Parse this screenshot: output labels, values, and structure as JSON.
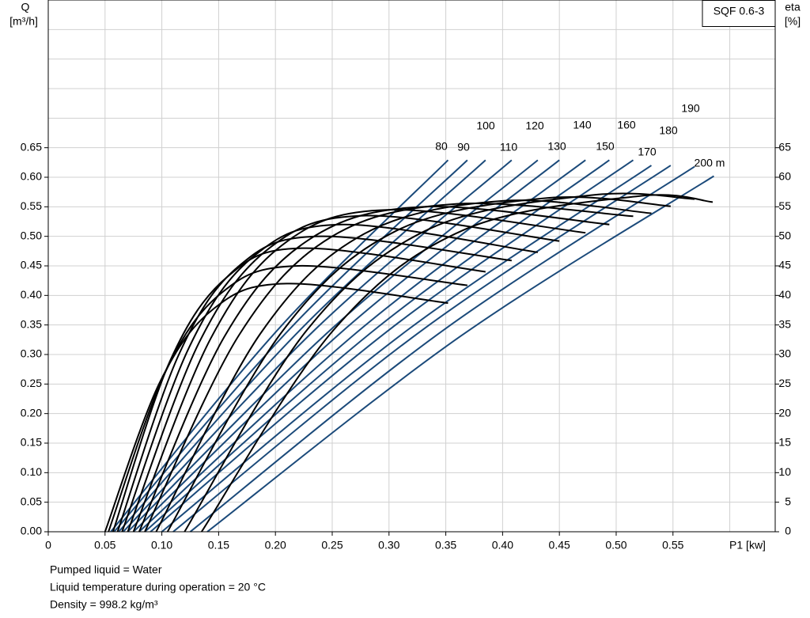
{
  "chart_data": {
    "type": "line",
    "title": "SQF 0.6-3",
    "ylabel": [
      "Q",
      "[m³/h]"
    ],
    "y2label": [
      "eta",
      "[%]"
    ],
    "xlabel": "P1 [kw]",
    "notes": [
      "Pumped liquid = Water",
      "Liquid temperature during operation = 20 °C",
      "Density = 998.2 kg/m³"
    ],
    "xlim": [
      0,
      0.64
    ],
    "ylim": [
      0,
      0.9
    ],
    "y2lim": [
      0,
      90
    ],
    "xticks": [
      0,
      0.05,
      {
        "value": 0.1,
        "label": "0.10"
      },
      0.15,
      {
        "value": 0.2,
        "label": "0.20"
      },
      0.25,
      {
        "value": 0.3,
        "label": "0.30"
      },
      0.35,
      {
        "value": 0.4,
        "label": "0.40"
      },
      0.45,
      {
        "value": 0.5,
        "label": "0.50"
      },
      0.55
    ],
    "xgrid": [
      0.6
    ],
    "yticks": [
      {
        "value": 0,
        "label": "0.00"
      },
      0.05,
      {
        "value": 0.1,
        "label": "0.10"
      },
      0.15,
      {
        "value": 0.2,
        "label": "0.20"
      },
      0.25,
      {
        "value": 0.3,
        "label": "0.30"
      },
      0.35,
      {
        "value": 0.4,
        "label": "0.40"
      },
      0.45,
      {
        "value": 0.5,
        "label": "0.50"
      },
      0.55,
      {
        "value": 0.6,
        "label": "0.60"
      },
      0.65
    ],
    "ygrid": [
      0.7,
      0.75,
      0.8,
      0.85
    ],
    "y2ticks": [
      0,
      5,
      10,
      15,
      20,
      25,
      30,
      35,
      40,
      45,
      50,
      55,
      60,
      65
    ],
    "grid": true,
    "series": [
      {
        "name": "80",
        "color": "#1b4a7a",
        "x": [
          0.055,
          0.204,
          0.352
        ],
        "values": [
          0,
          0.346,
          0.629
        ]
      },
      {
        "name": "90",
        "color": "#1b4a7a",
        "x": [
          0.058,
          0.214,
          0.369
        ],
        "values": [
          0,
          0.346,
          0.629
        ]
      },
      {
        "name": "100",
        "color": "#1b4a7a",
        "x": [
          0.062,
          0.224,
          0.385
        ],
        "values": [
          0,
          0.346,
          0.629
        ]
      },
      {
        "name": "110",
        "color": "#1b4a7a",
        "x": [
          0.066,
          0.237,
          0.408
        ],
        "values": [
          0,
          0.346,
          0.629
        ]
      },
      {
        "name": "120",
        "color": "#1b4a7a",
        "x": [
          0.07,
          0.251,
          0.431
        ],
        "values": [
          0,
          0.346,
          0.629
        ]
      },
      {
        "name": "130",
        "color": "#1b4a7a",
        "x": [
          0.075,
          0.263,
          0.45
        ],
        "values": [
          0,
          0.346,
          0.629
        ]
      },
      {
        "name": "140",
        "color": "#1b4a7a",
        "x": [
          0.08,
          0.277,
          0.473
        ],
        "values": [
          0,
          0.346,
          0.629
        ]
      },
      {
        "name": "150",
        "color": "#1b4a7a",
        "x": [
          0.085,
          0.29,
          0.494
        ],
        "values": [
          0,
          0.346,
          0.629
        ]
      },
      {
        "name": "160",
        "color": "#1b4a7a",
        "x": [
          0.09,
          0.303,
          0.515
        ],
        "values": [
          0,
          0.346,
          0.629
        ]
      },
      {
        "name": "170",
        "color": "#1b4a7a",
        "x": [
          0.1,
          0.316,
          0.531
        ],
        "values": [
          0,
          0.341,
          0.62
        ]
      },
      {
        "name": "180",
        "color": "#1b4a7a",
        "x": [
          0.11,
          0.329,
          0.548
        ],
        "values": [
          0,
          0.341,
          0.62
        ]
      },
      {
        "name": "190",
        "color": "#1b4a7a",
        "x": [
          0.125,
          0.347,
          0.569
        ],
        "values": [
          0,
          0.34,
          0.618
        ]
      },
      {
        "name": "200 m",
        "color": "#1b4a7a",
        "x": [
          0.14,
          0.363,
          0.586
        ],
        "values": [
          0,
          0.331,
          0.602
        ]
      },
      {
        "color": "#000000",
        "axis": "y2",
        "x": [
          0.05,
          0.098,
          0.146,
          0.21,
          0.352
        ],
        "values": [
          0,
          25.2,
          37.8,
          42,
          38.7
        ]
      },
      {
        "color": "#000000",
        "axis": "y2",
        "x": [
          0.053,
          0.103,
          0.153,
          0.22,
          0.369
        ],
        "values": [
          0,
          27,
          40.5,
          45,
          41.7
        ]
      },
      {
        "color": "#000000",
        "axis": "y2",
        "x": [
          0.057,
          0.107,
          0.158,
          0.225,
          0.385
        ],
        "values": [
          0,
          28.8,
          43.2,
          48,
          44
        ]
      },
      {
        "color": "#000000",
        "axis": "y2",
        "x": [
          0.061,
          0.115,
          0.168,
          0.24,
          0.408
        ],
        "values": [
          0,
          30,
          45,
          50,
          45.9
        ]
      },
      {
        "color": "#000000",
        "axis": "y2",
        "x": [
          0.065,
          0.124,
          0.182,
          0.26,
          0.431
        ],
        "values": [
          0,
          31.2,
          46.8,
          52,
          47.3
        ]
      },
      {
        "color": "#000000",
        "axis": "y2",
        "x": [
          0.07,
          0.133,
          0.196,
          0.28,
          0.45
        ],
        "values": [
          0,
          32.1,
          48.2,
          53.5,
          49.2
        ]
      },
      {
        "color": "#000000",
        "axis": "y2",
        "x": [
          0.075,
          0.143,
          0.21,
          0.3,
          0.473
        ],
        "values": [
          0,
          32.7,
          49.1,
          54.5,
          50.6
        ]
      },
      {
        "color": "#000000",
        "axis": "y2",
        "x": [
          0.08,
          0.155,
          0.23,
          0.33,
          0.494
        ],
        "values": [
          0,
          33,
          49.5,
          55,
          52
        ]
      },
      {
        "color": "#000000",
        "axis": "y2",
        "x": [
          0.085,
          0.168,
          0.25,
          0.36,
          0.515
        ],
        "values": [
          0,
          33.3,
          50,
          55.5,
          53.4
        ]
      },
      {
        "color": "#000000",
        "axis": "y2",
        "x": [
          0.095,
          0.187,
          0.278,
          0.4,
          0.531
        ],
        "values": [
          0,
          33.6,
          50.4,
          56,
          53.9
        ]
      },
      {
        "color": "#000000",
        "axis": "y2",
        "x": [
          0.105,
          0.206,
          0.306,
          0.44,
          0.548
        ],
        "values": [
          0,
          33.9,
          50.9,
          56.5,
          55.1
        ]
      },
      {
        "color": "#000000",
        "axis": "y2",
        "x": [
          0.12,
          0.228,
          0.336,
          0.48,
          0.569
        ],
        "values": [
          0,
          34.2,
          51.3,
          57,
          56.3
        ]
      },
      {
        "color": "#000000",
        "axis": "y2",
        "x": [
          0.135,
          0.251,
          0.366,
          0.52,
          0.585
        ],
        "values": [
          0,
          34.1,
          51.1,
          56.8,
          55.8
        ]
      }
    ]
  }
}
